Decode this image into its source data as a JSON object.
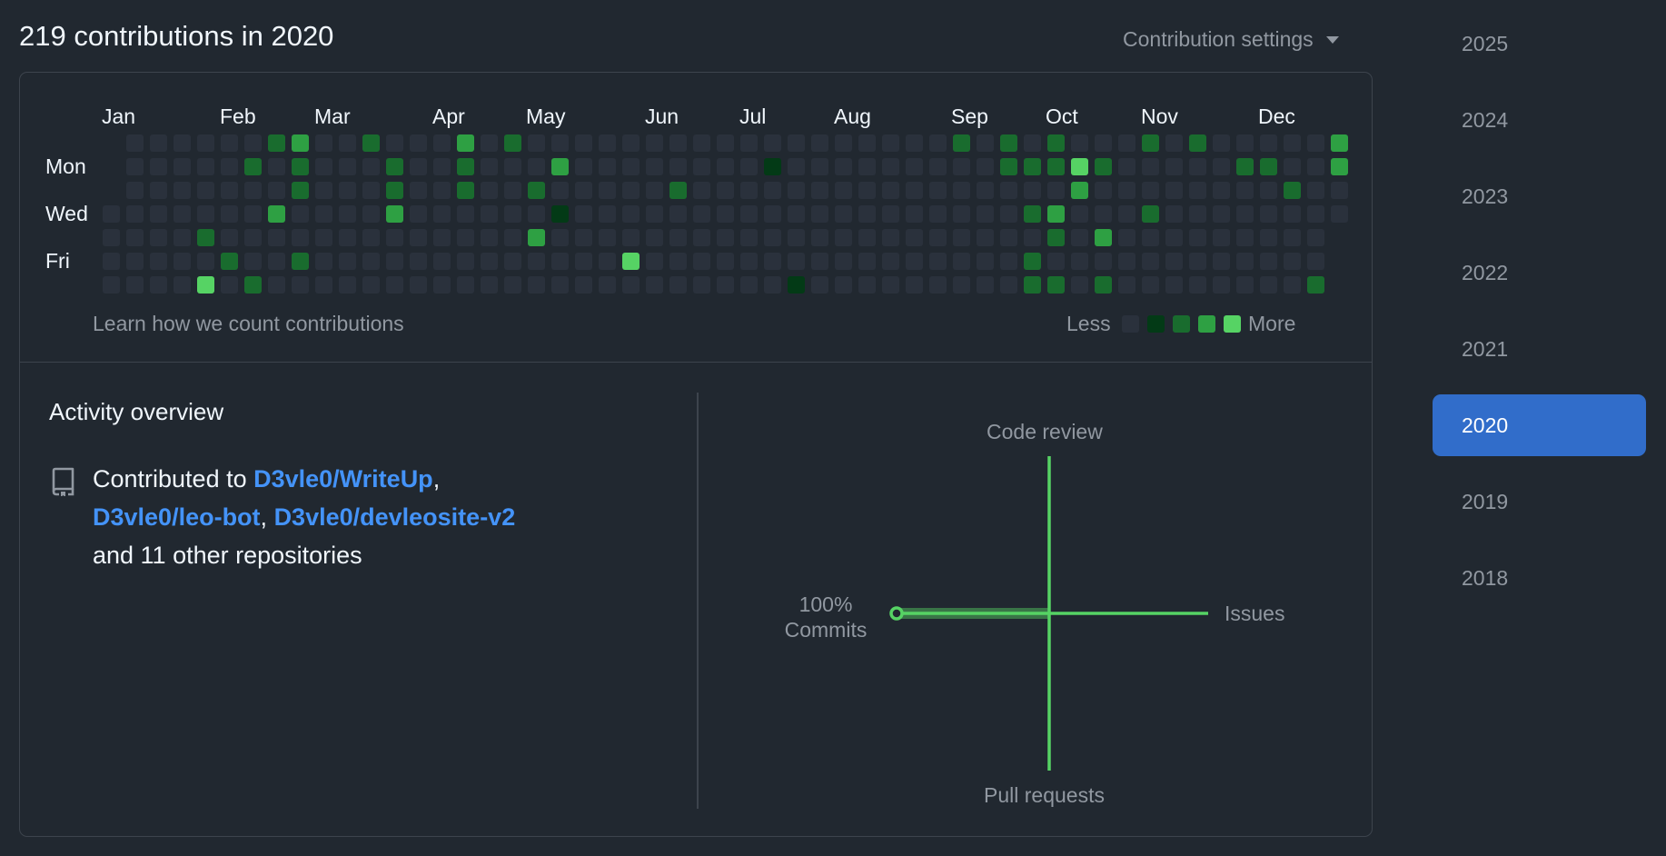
{
  "header": {
    "contributions_title": "219 contributions in 2020",
    "settings_label": "Contribution settings"
  },
  "calendar": {
    "months": [
      "Jan",
      "Feb",
      "Mar",
      "Apr",
      "May",
      "Jun",
      "Jul",
      "Aug",
      "Sep",
      "Oct",
      "Nov",
      "Dec"
    ],
    "days": [
      "Mon",
      "Wed",
      "Fri"
    ],
    "weeks": 53,
    "level_colors": [
      "#2a313c",
      "#033a16",
      "#196c2e",
      "#2ea043",
      "#56d364"
    ],
    "active_days": [
      [
        7,
        0,
        2
      ],
      [
        8,
        0,
        3
      ],
      [
        11,
        0,
        2
      ],
      [
        15,
        0,
        3
      ],
      [
        17,
        0,
        2
      ],
      [
        36,
        0,
        2
      ],
      [
        38,
        0,
        2
      ],
      [
        40,
        0,
        2
      ],
      [
        44,
        0,
        2
      ],
      [
        46,
        0,
        2
      ],
      [
        52,
        0,
        3
      ],
      [
        6,
        1,
        2
      ],
      [
        8,
        1,
        2
      ],
      [
        12,
        1,
        2
      ],
      [
        15,
        1,
        2
      ],
      [
        19,
        1,
        3
      ],
      [
        28,
        1,
        1
      ],
      [
        38,
        1,
        2
      ],
      [
        39,
        1,
        2
      ],
      [
        40,
        1,
        2
      ],
      [
        41,
        1,
        4
      ],
      [
        42,
        1,
        2
      ],
      [
        48,
        1,
        2
      ],
      [
        49,
        1,
        2
      ],
      [
        52,
        1,
        3
      ],
      [
        8,
        2,
        2
      ],
      [
        12,
        2,
        2
      ],
      [
        15,
        2,
        2
      ],
      [
        18,
        2,
        2
      ],
      [
        24,
        2,
        2
      ],
      [
        41,
        2,
        3
      ],
      [
        50,
        2,
        2
      ],
      [
        7,
        3,
        3
      ],
      [
        12,
        3,
        3
      ],
      [
        19,
        3,
        1
      ],
      [
        39,
        3,
        2
      ],
      [
        40,
        3,
        3
      ],
      [
        44,
        3,
        2
      ],
      [
        4,
        4,
        2
      ],
      [
        18,
        4,
        3
      ],
      [
        40,
        4,
        2
      ],
      [
        42,
        4,
        3
      ],
      [
        5,
        5,
        2
      ],
      [
        8,
        5,
        2
      ],
      [
        22,
        5,
        4
      ],
      [
        39,
        5,
        2
      ],
      [
        4,
        6,
        4
      ],
      [
        6,
        6,
        2
      ],
      [
        29,
        6,
        1
      ],
      [
        39,
        6,
        2
      ],
      [
        40,
        6,
        2
      ],
      [
        42,
        6,
        2
      ],
      [
        51,
        6,
        2
      ]
    ],
    "learn_link": "Learn how we count contributions",
    "legend_less": "Less",
    "legend_more": "More"
  },
  "activity": {
    "title": "Activity overview",
    "prefix": "Contributed to ",
    "repos": [
      "D3vle0/WriteUp",
      "D3vle0/leo-bot",
      "D3vle0/devleosite-v2"
    ],
    "sep": ", ",
    "suffix": "and 11 other repositories",
    "radar": {
      "top_label": "Code review",
      "right_label": "Issues",
      "bottom_label": "Pull requests",
      "left_percent": "100%",
      "left_label": "Commits",
      "values": {
        "commits": 100,
        "issues": 0,
        "code_review": 0,
        "pull_requests": 0
      },
      "color": "#56d364"
    }
  },
  "years": {
    "items": [
      "2025",
      "2024",
      "2023",
      "2022",
      "2021",
      "2020",
      "2019",
      "2018"
    ],
    "selected": "2020"
  }
}
